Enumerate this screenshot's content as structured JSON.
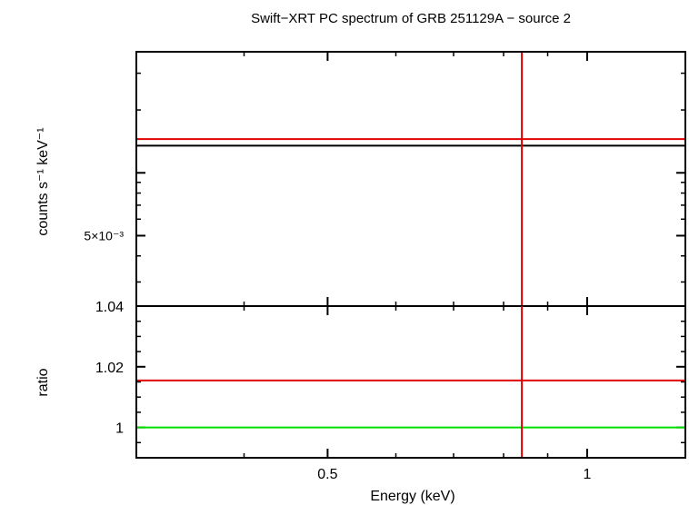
{
  "title": "Swift−XRT PC spectrum of GRB 251129A − source 2",
  "colors": {
    "axes": "#000000",
    "data": "#e00000",
    "model": "#000000",
    "unity": "#00e000"
  },
  "chart_data": [
    {
      "type": "line",
      "panel": "spectrum",
      "ylabel": "counts s⁻¹ keV⁻¹",
      "yscale": "log",
      "ylim": [
        0.0023,
        0.038
      ],
      "y_tick_labels": [
        {
          "value": 0.005,
          "label": "5×10⁻³"
        }
      ],
      "x_scale": "log",
      "xlim": [
        0.3,
        1.3
      ],
      "series": [
        {
          "role": "data-point",
          "x": 0.84,
          "x_err": [
            0.3,
            1.3
          ],
          "y": 0.0145,
          "y_err": [
            0.0023,
            0.038
          ]
        },
        {
          "role": "model",
          "x": [
            0.3,
            1.3
          ],
          "y": [
            0.0135,
            0.0135
          ]
        }
      ]
    },
    {
      "type": "line",
      "panel": "ratio",
      "ylabel": "ratio",
      "xlabel": "Energy (keV)",
      "ylim": [
        0.99,
        1.04
      ],
      "y_tick_labels": [
        {
          "value": 1.04,
          "label": "1.04"
        },
        {
          "value": 1.02,
          "label": "1.02"
        },
        {
          "value": 1,
          "label": "1"
        }
      ],
      "x_tick_labels": [
        {
          "value": 0.5,
          "label": "0.5"
        },
        {
          "value": 1,
          "label": "1"
        }
      ],
      "xscale": "log",
      "xlim": [
        0.3,
        1.3
      ],
      "series": [
        {
          "role": "data-point",
          "x": 0.84,
          "x_err": [
            0.3,
            1.3
          ],
          "y": 1.0155,
          "y_err": [
            0.99,
            1.04
          ]
        },
        {
          "role": "unity",
          "x": [
            0.3,
            1.3
          ],
          "y": [
            1,
            1
          ]
        }
      ]
    }
  ]
}
